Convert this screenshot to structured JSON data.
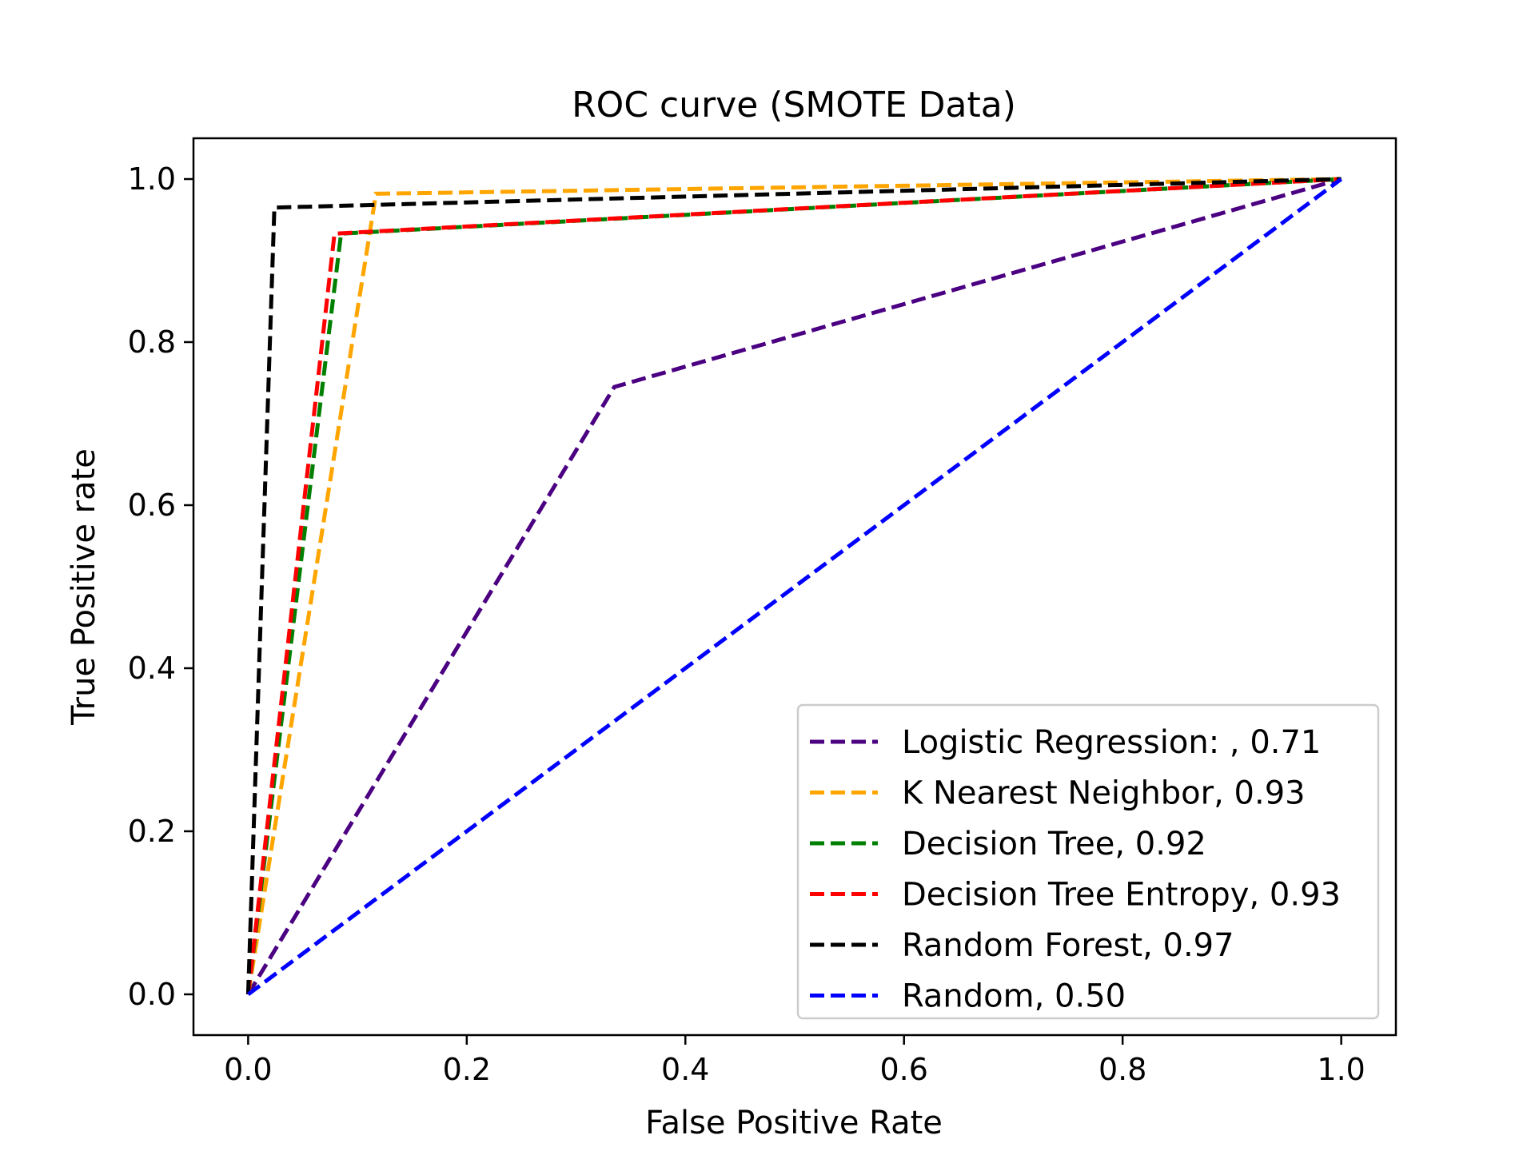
{
  "chart_data": {
    "type": "line",
    "title": "ROC curve (SMOTE Data)",
    "xlabel": "False Positive Rate",
    "ylabel": "True Positive rate",
    "xlim": [
      -0.05,
      1.05
    ],
    "ylim": [
      -0.05,
      1.05
    ],
    "xticks": [
      "0.0",
      "0.2",
      "0.4",
      "0.6",
      "0.8",
      "1.0"
    ],
    "yticks": [
      "0.0",
      "0.2",
      "0.4",
      "0.6",
      "0.8",
      "1.0"
    ],
    "grid": false,
    "legend_position": "lower-right",
    "line_style": "dashed",
    "series": [
      {
        "name": "Logistic Regression: , 0.71",
        "color": "#4b0082",
        "x": [
          0.0,
          0.335,
          1.0
        ],
        "y": [
          0.0,
          0.745,
          1.0
        ]
      },
      {
        "name": "K Nearest Neighbor, 0.93",
        "color": "#ffa500",
        "x": [
          0.0,
          0.117,
          1.0
        ],
        "y": [
          0.0,
          0.982,
          1.0
        ]
      },
      {
        "name": "Decision Tree, 0.92",
        "color": "#008000",
        "x": [
          0.0,
          0.085,
          1.0
        ],
        "y": [
          0.0,
          0.933,
          1.0
        ]
      },
      {
        "name": "Decision Tree Entropy, 0.93",
        "color": "#ff0000",
        "x": [
          0.0,
          0.079,
          1.0
        ],
        "y": [
          0.0,
          0.933,
          1.0
        ]
      },
      {
        "name": "Random Forest, 0.97",
        "color": "#000000",
        "x": [
          0.0,
          0.024,
          1.0
        ],
        "y": [
          0.0,
          0.965,
          1.0
        ]
      },
      {
        "name": "Random, 0.50",
        "color": "#0000ff",
        "x": [
          0.0,
          1.0
        ],
        "y": [
          0.0,
          1.0
        ]
      }
    ]
  }
}
